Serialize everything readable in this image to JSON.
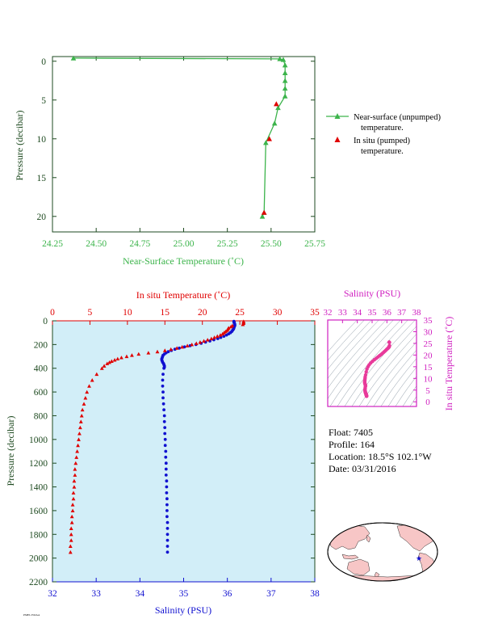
{
  "colors": {
    "green": "#3cb44b",
    "red": "#e00000",
    "blue": "#1010d0",
    "magenta": "#d020c0",
    "panel_fill": "#d2eef8",
    "dark_axis": "#1e4a20",
    "navy_text": "#000080"
  },
  "info": {
    "float": "Float:  7405",
    "profile": "Profile:  164",
    "location": "Location:  18.5°S  102.1°W",
    "date": "Date:  03/31/2016"
  },
  "footer_mark": "PMEL/NOAA",
  "chart_data": [
    {
      "type": "line",
      "id": "near-surface",
      "xlabel": "Near-Surface Temperature (˚C)",
      "ylabel": "Pressure (decibar)",
      "xlim": [
        24.25,
        25.75
      ],
      "ylim": [
        22,
        -0.6
      ],
      "xticks": [
        "24.25",
        "24.50",
        "24.75",
        "25.00",
        "25.25",
        "25.50",
        "25.75"
      ],
      "yticks": [
        "0",
        "5",
        "10",
        "15",
        "20"
      ],
      "legend": [
        {
          "line1": "Near-surface (unpumped)",
          "line2": "temperature."
        },
        {
          "line1": "In situ (pumped)",
          "line2": "temperature."
        }
      ],
      "series": [
        {
          "name": "Near-surface (unpumped) temperature.",
          "x": [
            24.37,
            25.55,
            25.57,
            25.58,
            25.58,
            25.58,
            25.58,
            25.58,
            25.54,
            25.52,
            25.47,
            25.46,
            25.45
          ],
          "y": [
            -0.4,
            -0.3,
            -0.2,
            0.5,
            1.5,
            2.5,
            3.5,
            4.5,
            6.0,
            8.0,
            10.5,
            19.5,
            20.0
          ]
        },
        {
          "name": "In situ (pumped) temperature.",
          "x": [
            25.53,
            25.49,
            25.46
          ],
          "y": [
            5.5,
            10.0,
            19.5
          ]
        }
      ]
    },
    {
      "type": "scatter",
      "id": "profile",
      "ylabel": "Pressure (decibar)",
      "top_xlabel": "In situ Temperature (˚C)",
      "bottom_xlabel": "Salinity (PSU)",
      "temp_lim": [
        0,
        35
      ],
      "sal_lim": [
        32,
        38
      ],
      "ylim": [
        0,
        2200
      ],
      "temp_ticks": [
        "0",
        "5",
        "10",
        "15",
        "20",
        "25",
        "30",
        "35"
      ],
      "sal_ticks": [
        "32",
        "33",
        "34",
        "35",
        "36",
        "37",
        "38"
      ],
      "pressure_ticks": [
        "0",
        "200",
        "400",
        "600",
        "800",
        "1000",
        "1200",
        "1400",
        "1600",
        "1800",
        "2000",
        "2200"
      ],
      "temperature": {
        "p": [
          5,
          10,
          20,
          30,
          40,
          50,
          60,
          70,
          80,
          90,
          100,
          110,
          120,
          130,
          140,
          150,
          160,
          170,
          180,
          190,
          200,
          210,
          220,
          230,
          240,
          250,
          260,
          270,
          280,
          290,
          300,
          310,
          320,
          330,
          340,
          350,
          360,
          380,
          400,
          450,
          500,
          550,
          600,
          650,
          700,
          750,
          800,
          850,
          900,
          950,
          1000,
          1050,
          1100,
          1150,
          1200,
          1250,
          1300,
          1350,
          1400,
          1450,
          1500,
          1550,
          1600,
          1650,
          1700,
          1750,
          1800,
          1850,
          1900,
          1950
        ],
        "t": [
          25.5,
          25.5,
          25.5,
          25.4,
          24.0,
          23.8,
          23.5,
          23.4,
          23.3,
          23.1,
          22.9,
          22.7,
          22.4,
          22.0,
          21.6,
          21.2,
          20.7,
          20.2,
          19.7,
          19.2,
          18.6,
          18.0,
          17.3,
          16.6,
          15.8,
          15.0,
          14.0,
          12.8,
          11.5,
          10.6,
          9.9,
          9.2,
          8.7,
          8.3,
          7.9,
          7.6,
          7.3,
          6.9,
          6.6,
          5.9,
          5.3,
          4.9,
          4.6,
          4.4,
          4.2,
          4.0,
          3.9,
          3.8,
          3.7,
          3.6,
          3.5,
          3.4,
          3.3,
          3.2,
          3.1,
          3.0,
          3.0,
          2.9,
          2.9,
          2.8,
          2.8,
          2.7,
          2.7,
          2.6,
          2.6,
          2.5,
          2.5,
          2.5,
          2.4,
          2.4
        ]
      },
      "salinity": {
        "p": [
          5,
          10,
          15,
          20,
          30,
          40,
          50,
          60,
          70,
          80,
          90,
          100,
          110,
          120,
          130,
          140,
          150,
          160,
          170,
          180,
          190,
          200,
          210,
          220,
          230,
          240,
          250,
          260,
          270,
          280,
          290,
          300,
          310,
          320,
          330,
          340,
          350,
          360,
          370,
          380,
          390,
          400,
          450,
          500,
          550,
          600,
          650,
          700,
          750,
          800,
          850,
          900,
          950,
          1000,
          1050,
          1100,
          1150,
          1200,
          1250,
          1300,
          1350,
          1400,
          1450,
          1500,
          1550,
          1600,
          1650,
          1700,
          1750,
          1800,
          1850,
          1900,
          1950
        ],
        "s": [
          36.15,
          36.15,
          36.16,
          36.16,
          36.17,
          36.17,
          36.16,
          36.15,
          36.14,
          36.12,
          36.1,
          36.07,
          36.03,
          35.98,
          35.92,
          35.85,
          35.78,
          35.69,
          35.6,
          35.5,
          35.4,
          35.28,
          35.15,
          35.02,
          34.9,
          34.8,
          34.72,
          34.65,
          34.6,
          34.56,
          34.53,
          34.52,
          34.51,
          34.5,
          34.5,
          34.51,
          34.52,
          34.54,
          34.55,
          34.56,
          34.56,
          34.55,
          34.53,
          34.52,
          34.52,
          34.53,
          34.53,
          34.54,
          34.55,
          34.56,
          34.56,
          34.57,
          34.57,
          34.58,
          34.58,
          34.59,
          34.59,
          34.6,
          34.6,
          34.6,
          34.61,
          34.61,
          34.61,
          34.62,
          34.62,
          34.62,
          34.62,
          34.63,
          34.63,
          34.63,
          34.63,
          34.63,
          34.63
        ]
      }
    },
    {
      "type": "scatter",
      "id": "ts-diagram",
      "xlabel": "Salinity (PSU)",
      "ylabel": "In situ Temperature (˚C)",
      "xlim": [
        32,
        38
      ],
      "ylim": [
        -2,
        35
      ],
      "xticks": [
        "32",
        "33",
        "34",
        "35",
        "36",
        "37",
        "38"
      ],
      "yticks": [
        "0",
        "5",
        "10",
        "15",
        "20",
        "25",
        "30",
        "35"
      ]
    },
    {
      "type": "map",
      "id": "location-map",
      "marker": {
        "lat": -18.5,
        "lon": -102.1
      }
    }
  ]
}
